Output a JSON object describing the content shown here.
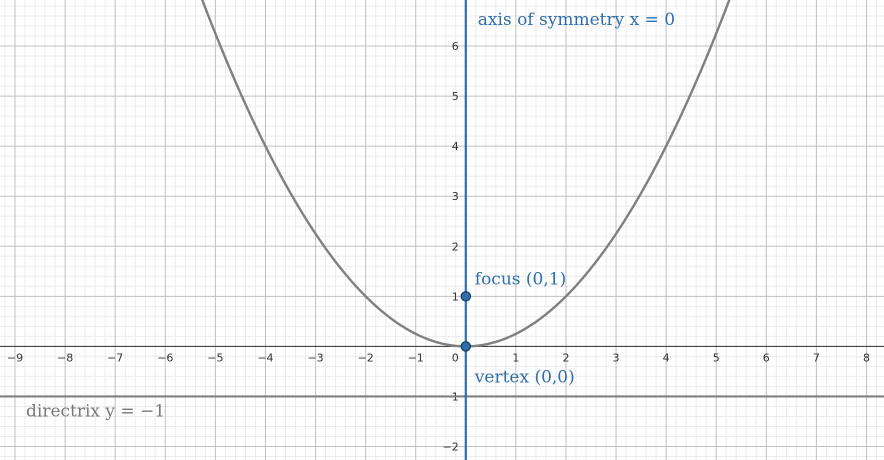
{
  "chart_data": {
    "type": "line",
    "title": "",
    "xlabel": "",
    "ylabel": "",
    "xlim": [
      -9.3,
      8.35
    ],
    "ylim": [
      -2.27,
      6.92
    ],
    "grid": true,
    "x_ticks": [
      -9,
      -8,
      -7,
      -6,
      -5,
      -4,
      -3,
      -2,
      -1,
      1,
      2,
      3,
      4,
      5,
      6,
      7,
      8
    ],
    "y_ticks": [
      -2,
      -1,
      1,
      2,
      3,
      4,
      5,
      6
    ],
    "origin_label": "0",
    "curve": {
      "equation": "y = x^2 / 4",
      "color": "#808080"
    },
    "axis_of_symmetry": {
      "x": 0,
      "label": "axis of symmetry x = 0",
      "color": "#2f6ea8"
    },
    "directrix": {
      "y": -1,
      "label": "directrix y = −1",
      "color": "#808080"
    },
    "points": [
      {
        "name": "focus",
        "x": 0,
        "y": 1,
        "label": "focus (0,1)",
        "color": "#2f6ea8"
      },
      {
        "name": "vertex",
        "x": 0,
        "y": 0,
        "label": "vertex (0,0)",
        "color": "#2f6ea8"
      }
    ]
  }
}
